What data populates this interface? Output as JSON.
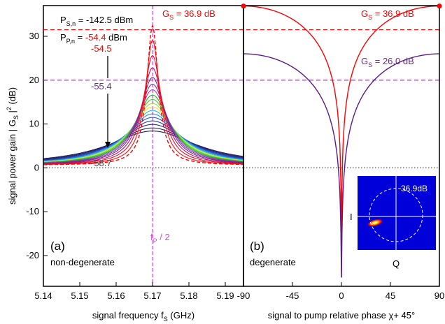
{
  "figure": {
    "y_axis_label": "signal power gain | G",
    "y_axis_label_sub": "S",
    "y_axis_label_tail": " |",
    "y_axis_label_sup": "2",
    "y_axis_label_unit": " (dB)"
  },
  "chart_data": [
    {
      "type": "line",
      "panel_label": "(a)",
      "mode_label": "non-degenerate",
      "xlabel": "signal frequency f",
      "xlabel_sub": "S",
      "xlabel_unit": " (GHz)",
      "xlim": [
        5.14,
        5.195
      ],
      "ylim": [
        -27,
        37
      ],
      "x_ticks": [
        "5.14",
        "5.15",
        "5.16",
        "5.17",
        "5.18",
        "5.19"
      ],
      "y_ticks": [
        "-20",
        "-10",
        "0",
        "10",
        "20",
        "30"
      ],
      "center_frequency": 5.17,
      "center_marker_label": "f",
      "center_marker_sub": "P",
      "center_marker_tail": " / 2",
      "signal_power_label": "P",
      "signal_power_sub": "S,n",
      "signal_power_value": " = -142.5 dBm",
      "pump_power_label": "P",
      "pump_power_sub": "P,n",
      "pump_power_eq": " = ",
      "pump_power_value": "-54.4",
      "pump_power_unit": " dBm",
      "pump_labels": [
        "-54.5",
        "-55.4",
        "-58.7"
      ],
      "max_gain_label": "G",
      "max_gain_sub": "S",
      "max_gain_value": " = 36.9 dB",
      "series": [
        {
          "peak": 7.8,
          "width": 0.014,
          "color": "#202060"
        },
        {
          "peak": 8.5,
          "width": 0.0125,
          "color": "#202060"
        },
        {
          "peak": 9.3,
          "width": 0.0112,
          "color": "#2a2a8a"
        },
        {
          "peak": 10.1,
          "width": 0.0101,
          "color": "#1f3fb0"
        },
        {
          "peak": 10.9,
          "width": 0.0092,
          "color": "#2060d0"
        },
        {
          "peak": 11.7,
          "width": 0.0084,
          "color": "#2090e0"
        },
        {
          "peak": 12.5,
          "width": 0.0077,
          "color": "#20c0e0"
        },
        {
          "peak": 13.3,
          "width": 0.0071,
          "color": "#e8e820"
        },
        {
          "peak": 14.1,
          "width": 0.0066,
          "color": "#a0e040"
        },
        {
          "peak": 15.0,
          "width": 0.0061,
          "color": "#40d040"
        },
        {
          "peak": 16.0,
          "width": 0.0056,
          "color": "#20b020"
        },
        {
          "peak": 17.2,
          "width": 0.0051,
          "color": "#a040c0"
        },
        {
          "peak": 18.5,
          "width": 0.0046,
          "color": "#8030a0"
        },
        {
          "peak": 20.0,
          "width": 0.0041,
          "color": "#6a2a8a"
        },
        {
          "peak": 22.2,
          "width": 0.0035,
          "color": "#c01060"
        },
        {
          "peak": 25.0,
          "width": 0.0029,
          "color": "#e01030"
        },
        {
          "peak": 28.5,
          "width": 0.0023,
          "color": "#ff1010"
        },
        {
          "peak": 31.8,
          "width": 0.0018,
          "color": "#ff0000",
          "dashed": true
        }
      ]
    },
    {
      "type": "line",
      "panel_label": "(b)",
      "mode_label": "degenerate",
      "xlabel": "signal to pump relative phase χ+ 45°",
      "xlim": [
        -90,
        90
      ],
      "ylim": [
        -27,
        37
      ],
      "x_ticks": [
        "-90",
        "-45",
        "0",
        "45",
        "90"
      ],
      "gain_label_high_name": "G",
      "gain_label_high_sub": "S",
      "gain_label_high_value": " = 36.9 dB",
      "gain_label_low_name": "G",
      "gain_label_low_sub": "S",
      "gain_label_low_value": " = 26.0 dB",
      "series": [
        {
          "max_gain_db": 36.9,
          "min_gain_db": -25.0,
          "color": "#ff0000"
        },
        {
          "max_gain_db": 26.0,
          "min_gain_db": -25.0,
          "color": "#5a1a8a"
        }
      ],
      "dashed_reference_lines": [
        {
          "y": 31.5,
          "color": "#ff0000"
        },
        {
          "y": 20.0,
          "color": "#8a2a9a"
        }
      ],
      "endpoint_markers": [
        {
          "x": -90,
          "y": 36.9
        },
        {
          "x": 90,
          "y": 36.9
        }
      ],
      "inset": {
        "gain_label": "36.9dB",
        "i_axis_label": "I",
        "q_axis_label": "Q"
      }
    }
  ]
}
